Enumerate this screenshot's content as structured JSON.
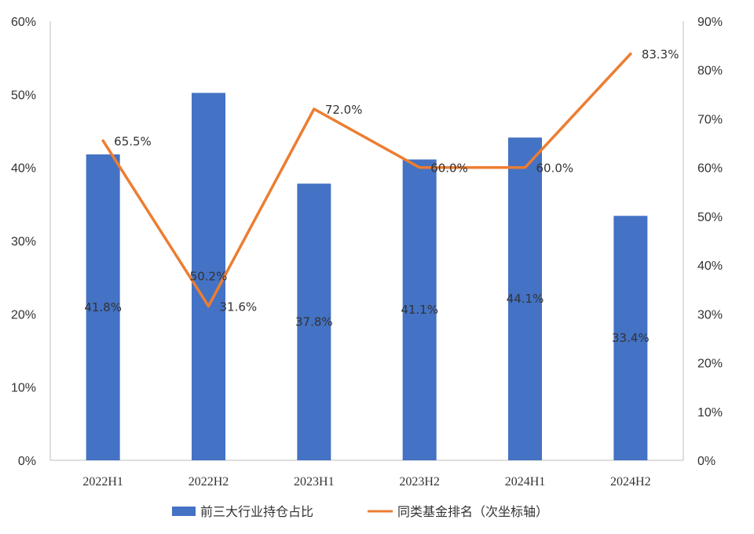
{
  "chart_data": {
    "type": "bar+line",
    "categories": [
      "2022H1",
      "2022H2",
      "2023H1",
      "2023H2",
      "2024H1",
      "2024H2"
    ],
    "series": [
      {
        "name": "前三大行业持仓占比",
        "type": "bar",
        "axis": "left",
        "color": "#4472C4",
        "values": [
          41.8,
          50.2,
          37.8,
          41.1,
          44.1,
          33.4
        ],
        "labels": [
          "41.8%",
          "50.2%",
          "37.8%",
          "41.1%",
          "44.1%",
          "33.4%"
        ]
      },
      {
        "name": "同类基金排名（次坐标轴）",
        "type": "line",
        "axis": "right",
        "color": "#ED7D31",
        "values": [
          65.5,
          31.6,
          72.0,
          60.0,
          60.0,
          83.3
        ],
        "labels": [
          "65.5%",
          "31.6%",
          "72.0%",
          "60.0%",
          "60.0%",
          "83.3%"
        ]
      }
    ],
    "y_left": {
      "min": 0,
      "max": 60,
      "step": 10,
      "ticks": [
        "0%",
        "10%",
        "20%",
        "30%",
        "40%",
        "50%",
        "60%"
      ]
    },
    "y_right": {
      "min": 0,
      "max": 90,
      "step": 10,
      "ticks": [
        "0%",
        "10%",
        "20%",
        "30%",
        "40%",
        "50%",
        "60%",
        "70%",
        "80%",
        "90%"
      ]
    },
    "legend_position": "bottom",
    "grid": false
  }
}
